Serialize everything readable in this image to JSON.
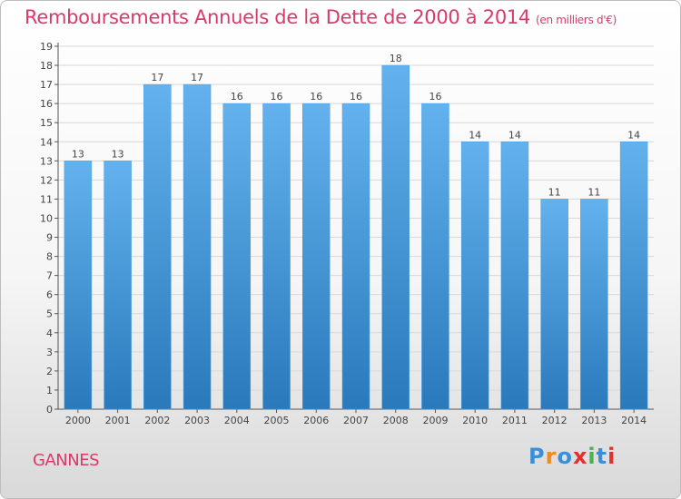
{
  "title": "Remboursements Annuels de la Dette de 2000 à 2014",
  "unit": "(en milliers d'€)",
  "town": "GANNES",
  "logo": {
    "text": "Proxiti",
    "colors": [
      "#3a8fd6",
      "#f08a1c",
      "#3a8fd6",
      "#e52f2f",
      "#4caf50",
      "#3a8fd6",
      "#e52f2f"
    ]
  },
  "colors": {
    "bar_top": "#63b2ee",
    "bar_bottom": "#2a79bb",
    "title": "#d93a6a",
    "grid": "#d8d8d8"
  },
  "chart_data": {
    "type": "bar",
    "title": "Remboursements Annuels de la Dette de 2000 à 2014",
    "xlabel": "",
    "ylabel": "",
    "ylim": [
      0,
      19
    ],
    "yticks": [
      0,
      1,
      2,
      3,
      4,
      5,
      6,
      7,
      8,
      9,
      10,
      11,
      12,
      13,
      14,
      15,
      16,
      17,
      18,
      19
    ],
    "grid": true,
    "categories": [
      "2000",
      "2001",
      "2002",
      "2003",
      "2004",
      "2005",
      "2006",
      "2007",
      "2008",
      "2009",
      "2010",
      "2011",
      "2012",
      "2013",
      "2014"
    ],
    "values": [
      13,
      13,
      17,
      17,
      16,
      16,
      16,
      16,
      18,
      16,
      14,
      14,
      11,
      11,
      14
    ]
  }
}
